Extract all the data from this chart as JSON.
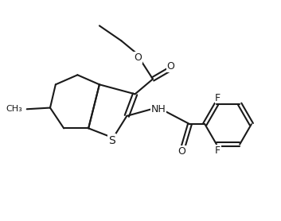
{
  "bg_color": "#ffffff",
  "line_color": "#1a1a1a",
  "line_width": 1.5,
  "font_size": 9,
  "atoms": {
    "S": {
      "label": "S",
      "color": "#1a1a1a"
    },
    "O": {
      "label": "O",
      "color": "#1a1a1a"
    },
    "N": {
      "label": "NH",
      "color": "#1a1a1a"
    },
    "F": {
      "label": "F",
      "color": "#1a1a1a"
    },
    "Me": {
      "label": "CH₃",
      "color": "#1a1a1a"
    }
  }
}
